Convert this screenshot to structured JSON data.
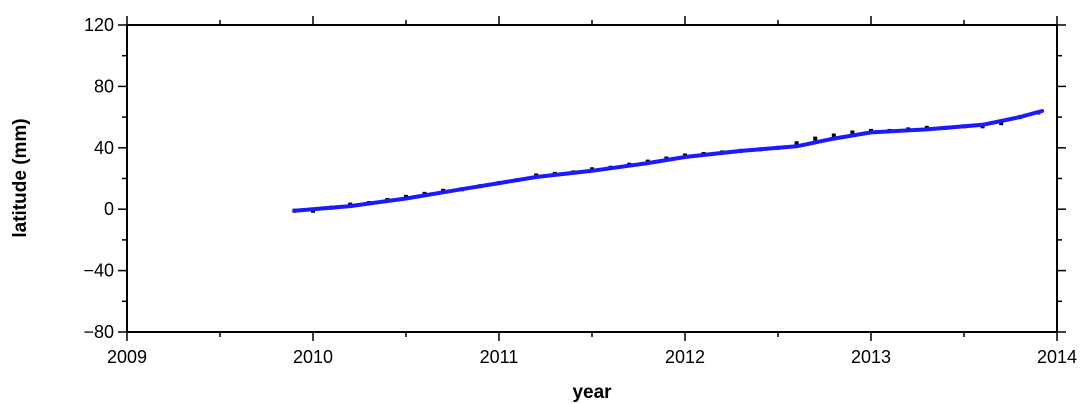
{
  "chart_data": {
    "type": "scatter",
    "title": "",
    "xlabel": "year",
    "ylabel": "latitude (mm)",
    "xlim": [
      2009,
      2014
    ],
    "ylim": [
      -80,
      120
    ],
    "x_ticks": [
      2009,
      2010,
      2011,
      2012,
      2013,
      2014
    ],
    "y_ticks": [
      -80,
      -40,
      0,
      40,
      80,
      120
    ],
    "x_tick_labels": [
      "2009",
      "2010",
      "2011",
      "2012",
      "2013",
      "2014"
    ],
    "y_tick_labels": [
      "−80",
      "−40",
      "0",
      "40",
      "80",
      "120"
    ],
    "grid": false,
    "series": [
      {
        "type": "scatter",
        "color": "#000000",
        "x": [
          2009.9,
          2010.0,
          2010.1,
          2010.2,
          2010.3,
          2010.4,
          2010.5,
          2010.6,
          2010.7,
          2010.8,
          2010.9,
          2011.0,
          2011.1,
          2011.2,
          2011.3,
          2011.4,
          2011.5,
          2011.6,
          2011.7,
          2011.8,
          2011.9,
          2012.0,
          2012.1,
          2012.2,
          2012.3,
          2012.4,
          2012.5,
          2012.6,
          2012.7,
          2012.8,
          2012.9,
          2013.0,
          2013.1,
          2013.2,
          2013.3,
          2013.4,
          2013.5,
          2013.6,
          2013.7,
          2013.8,
          2013.9
        ],
        "y": [
          -1,
          -1,
          1,
          3,
          4,
          6,
          8,
          10,
          12,
          13,
          15,
          17,
          19,
          22,
          23,
          24,
          26,
          27,
          29,
          31,
          33,
          35,
          36,
          37,
          38,
          39,
          40,
          43,
          46,
          48,
          50,
          51,
          51,
          52,
          53,
          53,
          54,
          54,
          56,
          60,
          63
        ]
      },
      {
        "type": "line",
        "color": "#1a1aff",
        "x": [
          2009.9,
          2010.2,
          2010.5,
          2010.8,
          2011.0,
          2011.2,
          2011.5,
          2011.8,
          2012.0,
          2012.3,
          2012.6,
          2012.8,
          2013.0,
          2013.3,
          2013.6,
          2013.8,
          2013.92
        ],
        "y": [
          -1,
          2,
          7,
          13,
          17,
          21,
          25,
          30,
          34,
          38,
          41,
          46,
          50,
          52,
          55,
          60,
          64
        ]
      }
    ]
  }
}
